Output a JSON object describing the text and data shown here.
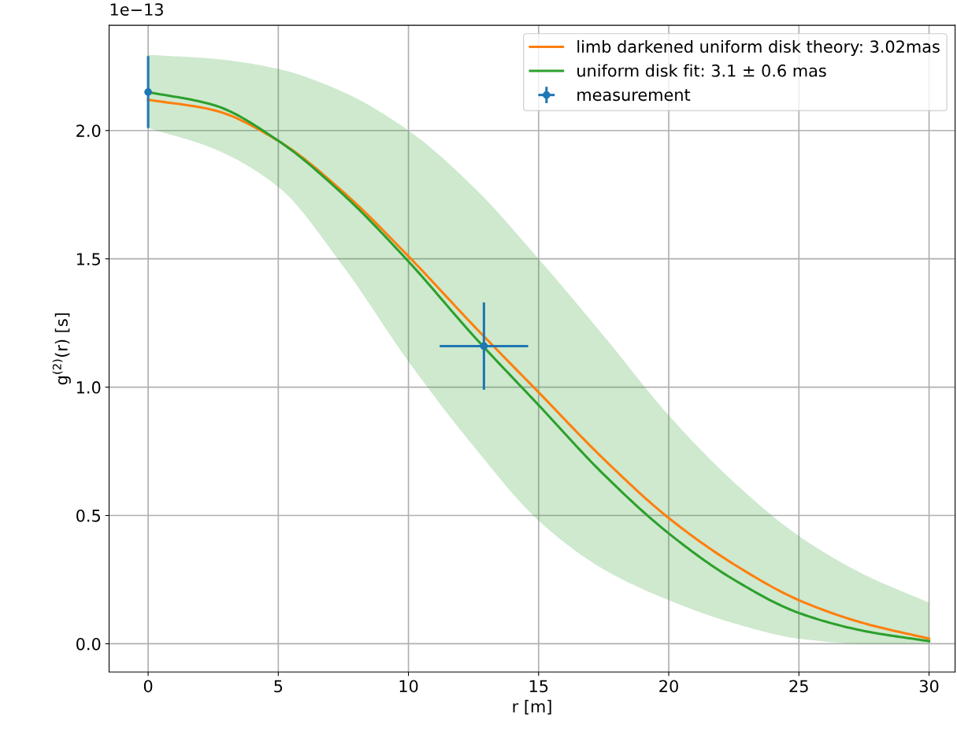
{
  "chart_data": {
    "type": "line",
    "xlabel": "r [m]",
    "ylabel": "g$^{(2)}$(r) [s]",
    "xlim": [
      -1.5,
      31.0
    ],
    "xticks": [
      0,
      5,
      10,
      15,
      20,
      25,
      30
    ],
    "ylim": [
      -0.11,
      2.41
    ],
    "yticks": [
      {
        "value": 0,
        "label": "0.0"
      },
      0.5,
      {
        "value": 1,
        "label": "1.0"
      },
      1.5,
      {
        "value": 2,
        "label": "2.0"
      }
    ],
    "grid": true,
    "legend": "top right",
    "annotations": [
      "1e−13"
    ],
    "series": [
      {
        "name": "limb darkened uniform disk theory: 3.02mas",
        "color": "#ff7f0e",
        "x": [
          0,
          2.5,
          5,
          7.5,
          10,
          12.5,
          15,
          17.5,
          20,
          22.5,
          25,
          27.5,
          30
        ],
        "values": [
          2.12,
          2.08,
          1.96,
          1.76,
          1.51,
          1.24,
          0.98,
          0.72,
          0.49,
          0.31,
          0.17,
          0.08,
          0.02
        ]
      },
      {
        "name": "uniform disk fit: 3.1 ± 0.6 mas",
        "color": "#2ca02c",
        "x": [
          0,
          2.5,
          5,
          7.5,
          10,
          12.5,
          15,
          17.5,
          20,
          22.5,
          25,
          27.5,
          30
        ],
        "values": [
          2.15,
          2.1,
          1.96,
          1.75,
          1.49,
          1.2,
          0.93,
          0.66,
          0.43,
          0.25,
          0.12,
          0.05,
          0.01
        ],
        "lower": [
          2.01,
          1.93,
          1.78,
          1.47,
          1.1,
          0.77,
          0.48,
          0.29,
          0.17,
          0.08,
          0.02,
          0.0,
          0.0
        ],
        "upper": [
          2.295,
          2.28,
          2.24,
          2.15,
          2.0,
          1.78,
          1.5,
          1.2,
          0.89,
          0.63,
          0.42,
          0.27,
          0.16
        ]
      },
      {
        "name": "measurement",
        "type": "scatter",
        "color": "#1f77b4",
        "marker": "circle",
        "x": [
          0,
          12.9
        ],
        "values": [
          2.15,
          1.16
        ],
        "errors": [
          0.14,
          0.17
        ],
        "xerrors": [
          null,
          1.7
        ]
      }
    ]
  }
}
